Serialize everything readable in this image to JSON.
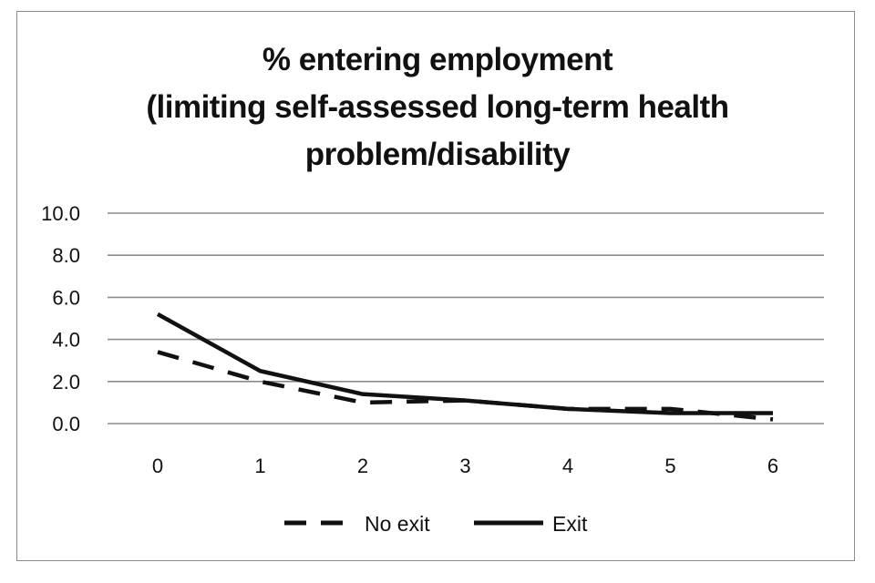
{
  "chart_data": {
    "type": "line",
    "title_lines": [
      "% entering employment",
      "(limiting self-assessed long-term health",
      "problem/disability"
    ],
    "x": [
      0,
      1,
      2,
      3,
      4,
      5,
      6
    ],
    "ylim": [
      0,
      10
    ],
    "yticks": [
      "0.0",
      "2.0",
      "4.0",
      "6.0",
      "8.0",
      "10.0"
    ],
    "ytick_values": [
      0,
      2,
      4,
      6,
      8,
      10
    ],
    "grid": true,
    "legend_position": "bottom",
    "series": [
      {
        "name": "No exit",
        "style": "dashed",
        "color": "#111111",
        "values": [
          3.4,
          2.0,
          1.0,
          1.1,
          0.7,
          0.7,
          0.2
        ]
      },
      {
        "name": "Exit",
        "style": "solid",
        "color": "#111111",
        "values": [
          5.2,
          2.5,
          1.4,
          1.1,
          0.7,
          0.5,
          0.5
        ]
      }
    ]
  }
}
